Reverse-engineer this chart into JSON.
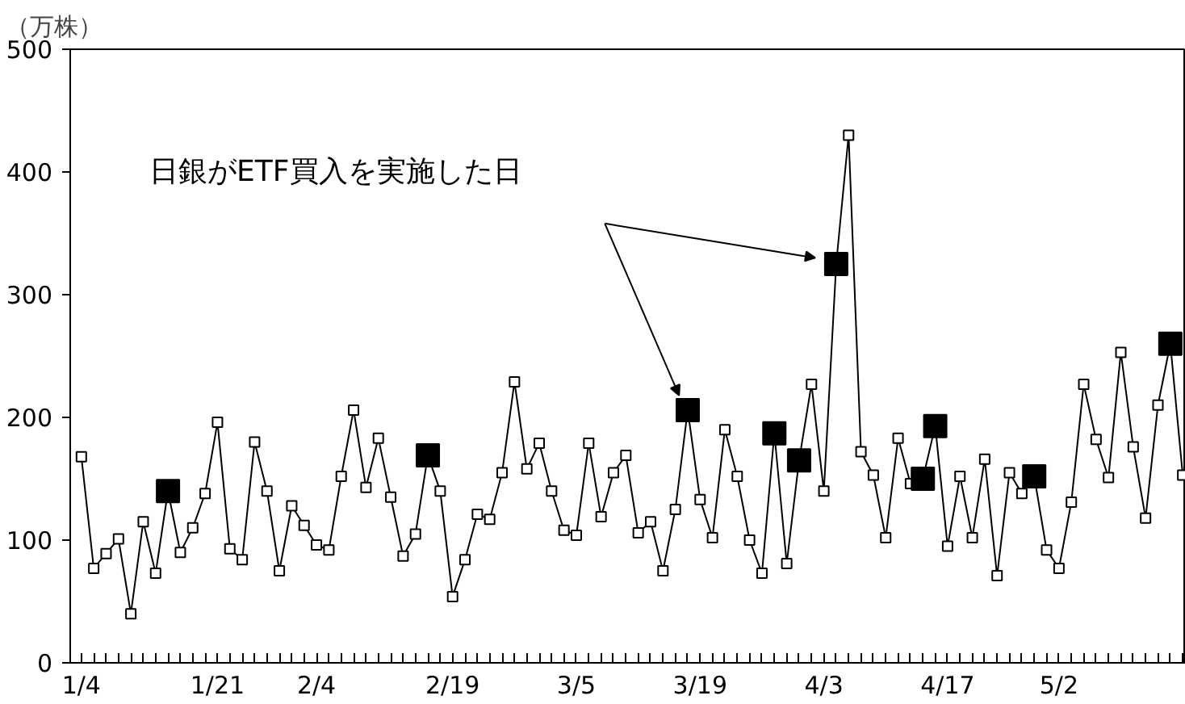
{
  "chart_data": {
    "type": "line",
    "ylabel": "（万株）",
    "annotations": [
      "日銀がETF買入を実施した日"
    ],
    "categories": [
      "1/4",
      null,
      null,
      null,
      null,
      null,
      null,
      null,
      null,
      null,
      null,
      "1/21",
      null,
      null,
      null,
      null,
      null,
      null,
      null,
      "2/4",
      null,
      null,
      null,
      null,
      null,
      null,
      null,
      null,
      null,
      null,
      "2/19",
      null,
      null,
      null,
      null,
      null,
      null,
      null,
      null,
      null,
      "3/5",
      null,
      null,
      null,
      null,
      null,
      null,
      null,
      null,
      null,
      "3/19",
      null,
      null,
      null,
      null,
      null,
      null,
      null,
      null,
      null,
      "4/3",
      null,
      null,
      null,
      null,
      null,
      null,
      null,
      null,
      null,
      "4/17",
      null,
      null,
      null,
      null,
      null,
      null,
      null,
      null,
      "5/2",
      null,
      null,
      null,
      null,
      null,
      null,
      null,
      null,
      null,
      null
    ],
    "series": [
      {
        "color": "#000000",
        "marker": "square",
        "values": [
          168,
          77,
          89,
          101,
          40,
          115,
          73,
          140,
          90,
          110,
          138,
          196,
          93,
          84,
          180,
          140,
          75,
          128,
          112,
          96,
          92,
          152,
          206,
          143,
          183,
          135,
          87,
          105,
          169,
          140,
          54,
          84,
          121,
          117,
          155,
          229,
          158,
          179,
          140,
          108,
          104,
          179,
          119,
          155,
          169,
          106,
          115,
          75,
          125,
          206,
          133,
          102,
          190,
          152,
          100,
          73,
          187,
          81,
          165,
          227,
          140,
          325,
          430,
          172,
          153,
          102,
          183,
          146,
          150,
          193,
          95,
          152,
          102,
          166,
          71,
          155,
          138,
          152,
          92,
          77,
          131,
          227,
          182,
          151,
          253,
          176,
          118,
          210,
          260,
          153
        ]
      },
      {
        "type": "scatter",
        "color": "#000000",
        "marker": "square",
        "values": [
          null,
          null,
          null,
          null,
          null,
          null,
          null,
          140,
          null,
          null,
          null,
          null,
          null,
          null,
          null,
          null,
          null,
          null,
          null,
          null,
          null,
          null,
          null,
          null,
          null,
          null,
          null,
          null,
          169,
          null,
          null,
          null,
          null,
          null,
          null,
          null,
          null,
          null,
          null,
          null,
          null,
          null,
          null,
          null,
          null,
          null,
          null,
          null,
          null,
          206,
          null,
          null,
          null,
          null,
          null,
          null,
          187,
          null,
          165,
          null,
          null,
          325,
          null,
          null,
          null,
          null,
          null,
          null,
          150,
          193,
          null,
          null,
          null,
          null,
          null,
          null,
          null,
          152,
          null,
          null,
          null,
          null,
          null,
          null,
          null,
          null,
          null,
          null,
          260,
          null
        ]
      }
    ],
    "ylim": [
      0,
      500
    ],
    "yticks": [
      0,
      100,
      200,
      300,
      400,
      500
    ],
    "grid": false
  }
}
